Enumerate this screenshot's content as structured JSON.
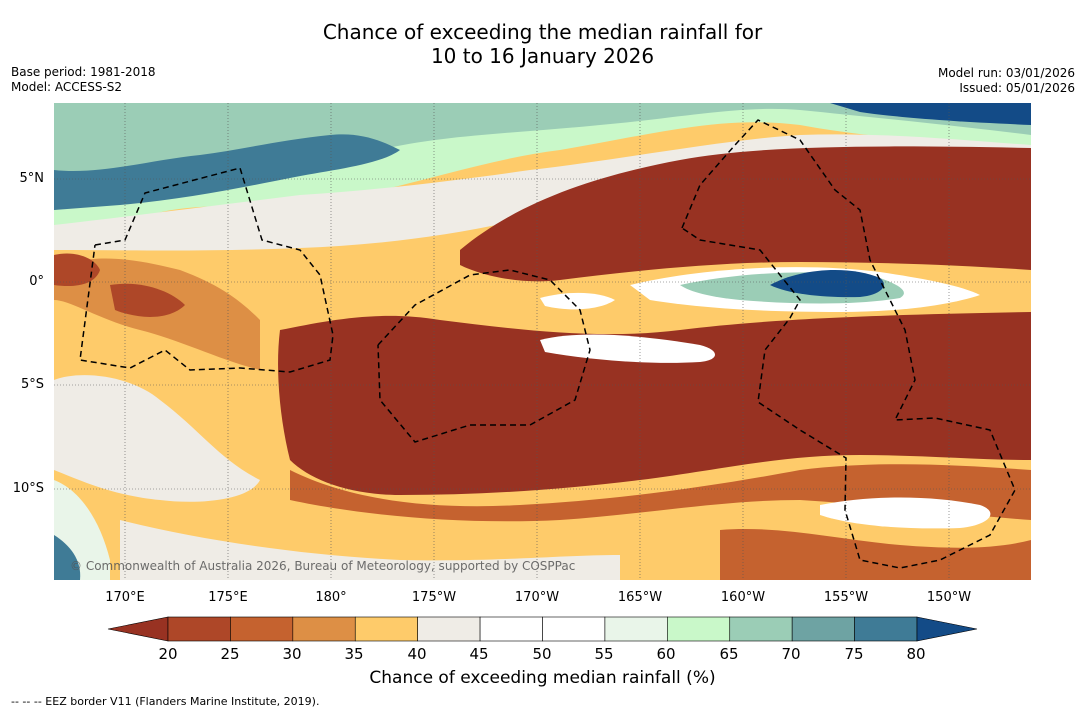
{
  "header": {
    "title_line1": "Chance of exceeding the median rainfall for",
    "title_line2": "10 to 16 January 2026",
    "base_period": "Base period: 1981-2018",
    "model": "Model: ACCESS-S2",
    "model_run": "Model run: 03/01/2026",
    "issued": "Issued: 05/01/2026"
  },
  "map": {
    "lat_labels": [
      "5°N",
      "0°",
      "5°S",
      "10°S"
    ],
    "lon_labels": [
      "170°E",
      "175°E",
      "180°",
      "175°W",
      "170°W",
      "165°W",
      "160°W",
      "155°W",
      "150°W"
    ],
    "copyright": "© Commonwealth of Australia 2026, Bureau of Meteorology, supported by COSPPac"
  },
  "colorbar": {
    "ticks": [
      "20",
      "25",
      "30",
      "35",
      "40",
      "45",
      "50",
      "55",
      "60",
      "65",
      "70",
      "75",
      "80"
    ],
    "colors": [
      "#983222",
      "#ae4728",
      "#c5622f",
      "#dd8f45",
      "#fecb6a",
      "#efece6",
      "#ffffff",
      "#ffffff",
      "#e9f5e9",
      "#c9f8c9",
      "#9bcdb6",
      "#6ea3a3",
      "#3f7b96",
      "#134b87"
    ],
    "label": "Chance of exceeding median rainfall (%)"
  },
  "legend": {
    "eez": "--  --  -- EEZ border V11 (Flanders Marine Institute, 2019)."
  }
}
